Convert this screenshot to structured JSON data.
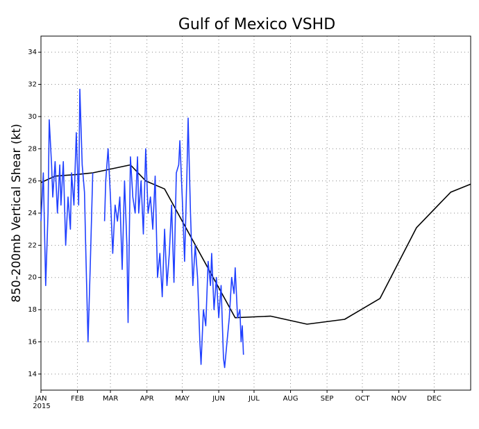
{
  "chart_data": {
    "type": "line",
    "title": "Gulf of Mexico VSHD",
    "y_label": "850-200mb Vertical Shear (kt)",
    "year": "2015",
    "xlim": [
      0,
      365
    ],
    "ylim": [
      13,
      35
    ],
    "xticks": [
      {
        "value": 0,
        "label": "JAN"
      },
      {
        "value": 31,
        "label": "FEB"
      },
      {
        "value": 59,
        "label": "MAR"
      },
      {
        "value": 90,
        "label": "APR"
      },
      {
        "value": 120,
        "label": "MAY"
      },
      {
        "value": 151,
        "label": "JUN"
      },
      {
        "value": 181,
        "label": "JUL"
      },
      {
        "value": 212,
        "label": "AUG"
      },
      {
        "value": 243,
        "label": "SEP"
      },
      {
        "value": 273,
        "label": "OCT"
      },
      {
        "value": 304,
        "label": "NOV"
      },
      {
        "value": 334,
        "label": "DEC"
      }
    ],
    "yticks": [
      14,
      16,
      18,
      20,
      22,
      24,
      26,
      28,
      30,
      32,
      34
    ],
    "grid": true,
    "series": [
      {
        "color": "#000000",
        "x": [
          0,
          12,
          30,
          44,
          76,
          89,
          105,
          165,
          195,
          226,
          258,
          288,
          319,
          348,
          365
        ],
        "values": [
          25.9,
          26.3,
          26.4,
          26.5,
          27.0,
          26.0,
          25.5,
          17.5,
          17.6,
          17.1,
          17.4,
          18.7,
          23.1,
          25.3,
          25.8
        ]
      },
      {
        "color": "#2040ff",
        "x": [
          0,
          2,
          4,
          6,
          7,
          9,
          10,
          12,
          14,
          16,
          17,
          19,
          21,
          23,
          25,
          26,
          28,
          30,
          32,
          33,
          35,
          37,
          38,
          40,
          42,
          44,
          49,
          54,
          55,
          57,
          59,
          61,
          63,
          65,
          67,
          69,
          71,
          73,
          74,
          76,
          78,
          80,
          82,
          83,
          85,
          87,
          89,
          91,
          93,
          95,
          97,
          99,
          101,
          103,
          105,
          107,
          109,
          111,
          113,
          115,
          117,
          118,
          120,
          122,
          124,
          125,
          127,
          129,
          131,
          133,
          135,
          136,
          138,
          140,
          142,
          144,
          145,
          147,
          149,
          151,
          153,
          155,
          156,
          158,
          160,
          162,
          164,
          165,
          167,
          169,
          170,
          171,
          172
        ],
        "values": [
          23.5,
          26.5,
          19.5,
          24,
          29.8,
          27,
          25,
          27.2,
          24,
          27,
          24.5,
          27.2,
          22,
          25,
          23,
          26.5,
          24.5,
          29,
          24.5,
          31.7,
          27,
          25.3,
          22,
          16,
          21,
          26.5,
          null,
          23.5,
          26,
          28,
          25,
          21.5,
          24.5,
          23.5,
          25,
          20.5,
          26,
          22,
          17.2,
          27.5,
          25,
          24,
          27.5,
          24,
          26,
          22.7,
          28,
          24,
          25,
          23,
          26.3,
          20,
          21.5,
          18.8,
          23,
          19.5,
          21.5,
          24.5,
          19.7,
          26.5,
          27,
          28.5,
          25,
          21,
          26.5,
          29.9,
          24,
          19.5,
          22,
          20,
          16,
          14.6,
          18,
          17,
          21,
          19.5,
          21.5,
          18,
          20,
          17.5,
          19.5,
          15,
          14.4,
          16,
          17.5,
          20,
          19,
          20.6,
          17.5,
          18,
          16,
          17,
          15.2
        ]
      }
    ]
  }
}
